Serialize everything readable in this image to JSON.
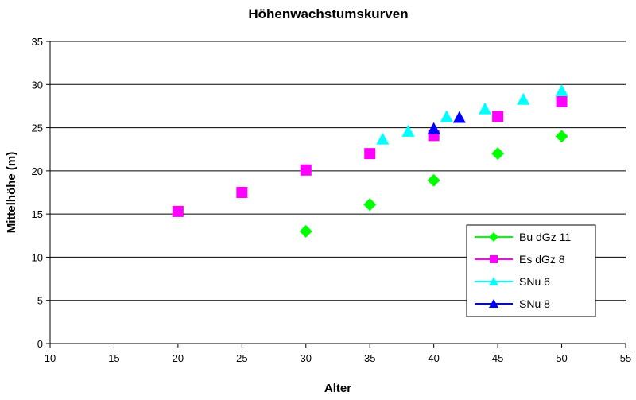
{
  "chart_data": {
    "type": "scatter",
    "title": "Höhenwachstumskurven",
    "xlabel": "Alter",
    "ylabel": "Mittelhöhe (m)",
    "xlim": [
      10,
      55
    ],
    "ylim": [
      0,
      35
    ],
    "xticks": [
      "10",
      "15",
      "20",
      "25",
      "30",
      "35",
      "40",
      "45",
      "50",
      "55"
    ],
    "yticks": [
      "0",
      "5",
      "10",
      "15",
      "20",
      "25",
      "30",
      "35"
    ],
    "grid": "horizontal",
    "legend_position": "bottom-right",
    "series": [
      {
        "name": "Bu dGz 11",
        "marker": "diamond",
        "color": "#00ff00",
        "points": [
          [
            30,
            13.0
          ],
          [
            35,
            16.1
          ],
          [
            40,
            18.9
          ],
          [
            45,
            22.0
          ],
          [
            50,
            24.0
          ]
        ]
      },
      {
        "name": "Es dGz 8",
        "marker": "square",
        "color": "#ff00ff",
        "points": [
          [
            20,
            15.3
          ],
          [
            25,
            17.5
          ],
          [
            30,
            20.1
          ],
          [
            35,
            22.0
          ],
          [
            40,
            24.1
          ],
          [
            45,
            26.3
          ],
          [
            50,
            28.0
          ]
        ]
      },
      {
        "name": "SNu 6",
        "marker": "triangle",
        "color": "#00ffff",
        "points": [
          [
            36,
            23.7
          ],
          [
            38,
            24.6
          ],
          [
            41,
            26.3
          ],
          [
            44,
            27.2
          ],
          [
            47,
            28.3
          ],
          [
            50,
            29.3
          ]
        ]
      },
      {
        "name": "SNu 8",
        "marker": "triangle",
        "color": "#0000ff",
        "points": [
          [
            40,
            24.9
          ],
          [
            42,
            26.2
          ]
        ]
      }
    ]
  }
}
